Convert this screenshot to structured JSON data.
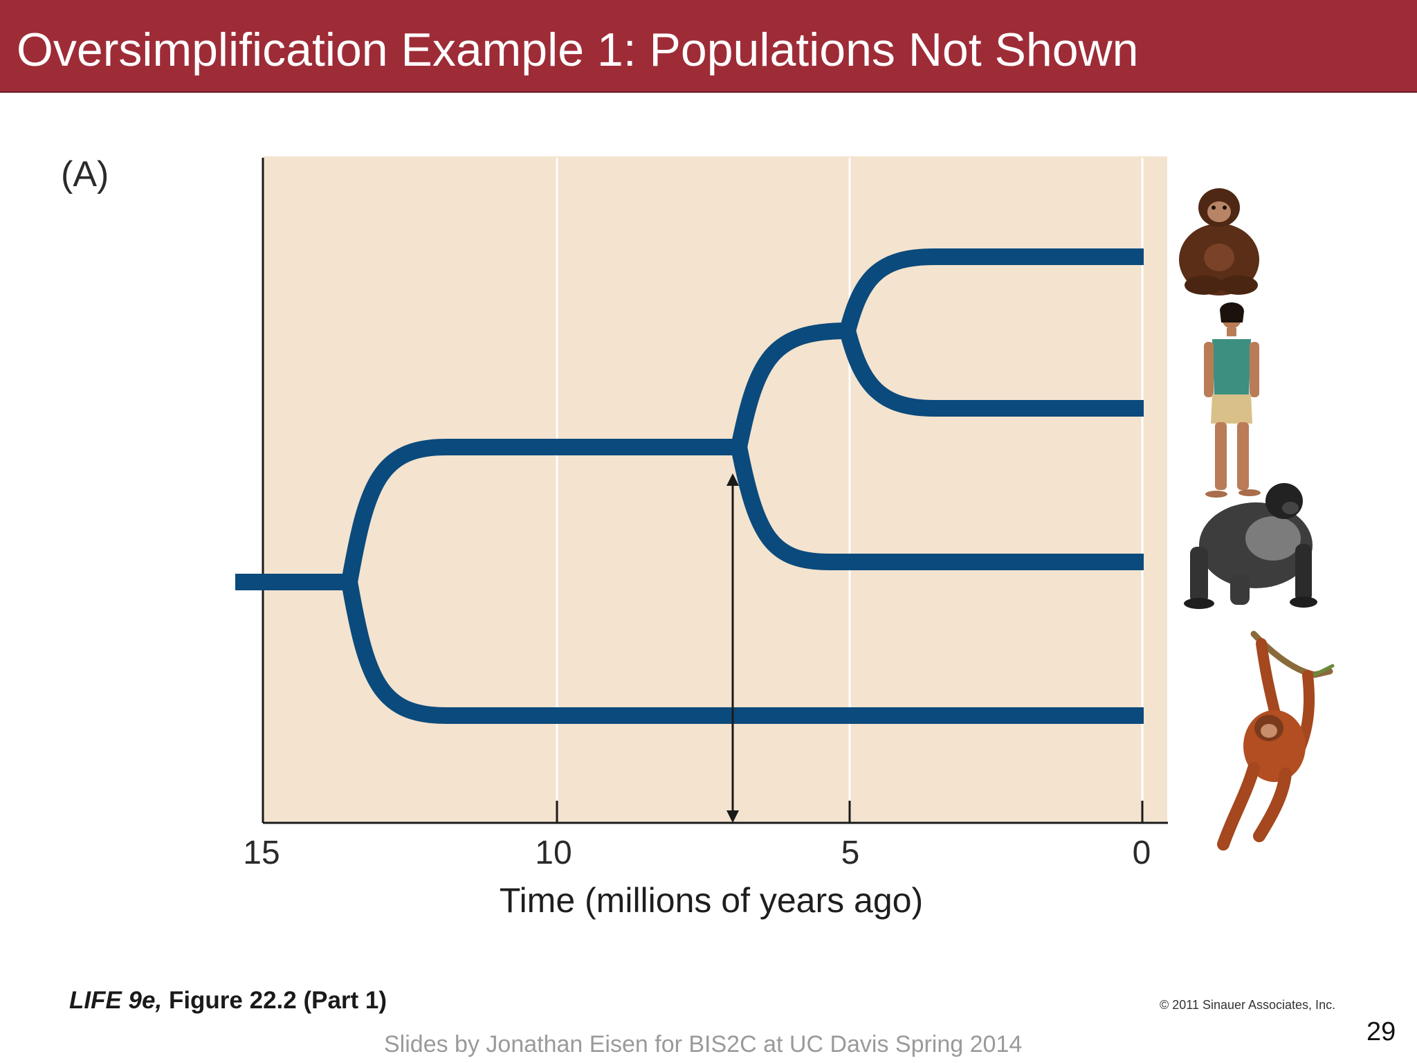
{
  "slide": {
    "title": "Oversimplification Example 1: Populations Not Shown",
    "panel_label": "(A)",
    "credit_book": "LIFE 9e,",
    "credit_figure": " Figure 22.2 (Part 1)",
    "copyright": "© 2011 Sinauer Associates, Inc.",
    "footer": "Slides by Jonathan Eisen for BIS2C at UC Davis Spring 2014",
    "page_number": "29"
  },
  "figure": {
    "x_axis": {
      "title": "Time (millions of years ago)",
      "ticks": [
        15,
        10,
        5,
        0
      ],
      "tick_labels": [
        "15",
        "10",
        "5",
        "0"
      ],
      "range_mya": [
        15,
        0
      ]
    },
    "tree": {
      "root_split_mya": 13.6,
      "gorilla_split_mya": 7.0,
      "human_chimp_split_mya": 5.1,
      "tips": [
        "chimpanzee",
        "human",
        "gorilla",
        "orangutan"
      ]
    },
    "marker_arrow_mya": 7.0,
    "colors": {
      "background": "#f3e3cf",
      "branches": "#0b4a7c",
      "title_bar": "#9e2c37"
    }
  }
}
